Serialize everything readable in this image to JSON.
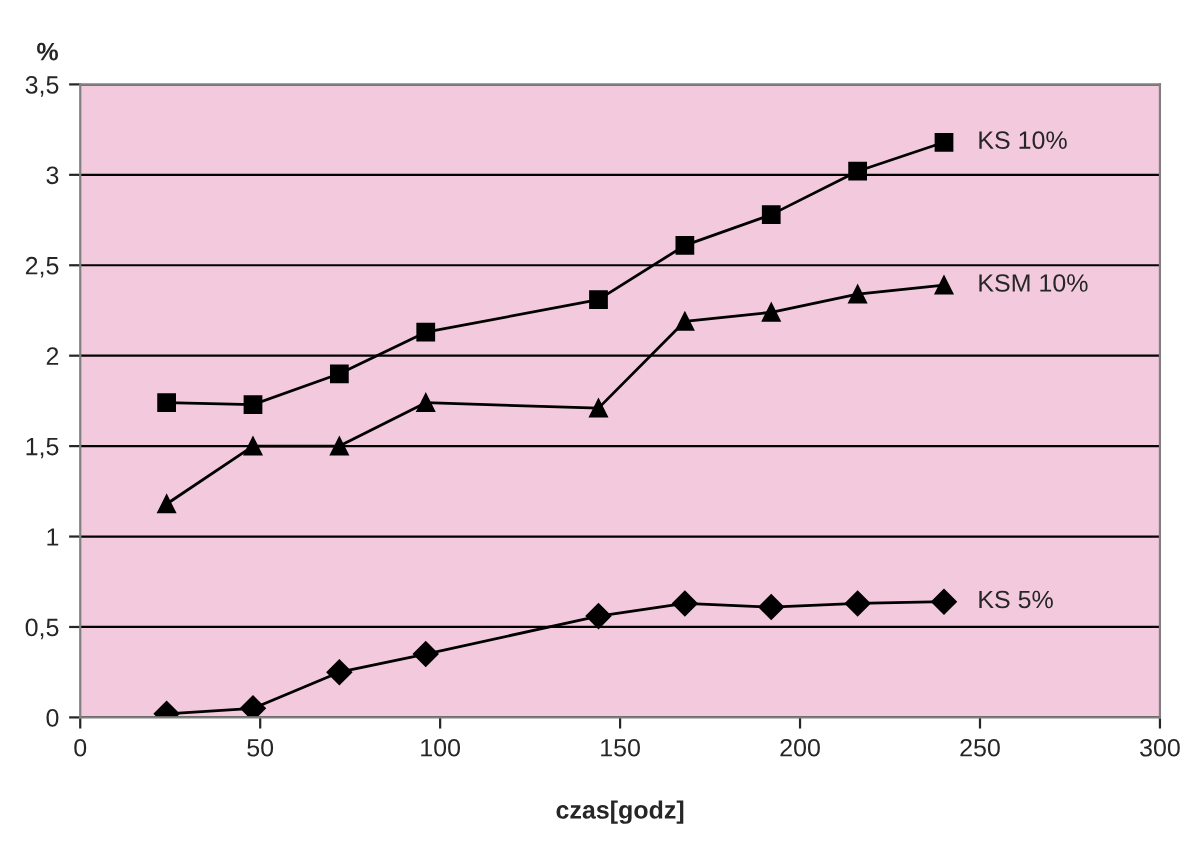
{
  "chart_data": {
    "type": "line",
    "ylabel": "%",
    "xlabel": "czas[godz]",
    "x": [
      24,
      48,
      72,
      96,
      144,
      168,
      192,
      216,
      240
    ],
    "series": [
      {
        "name": "KS 10%",
        "color": "#000000",
        "marker": "square",
        "values": [
          1.74,
          1.73,
          1.9,
          2.13,
          2.31,
          2.61,
          2.78,
          3.02,
          3.18
        ]
      },
      {
        "name": "KSM 10%",
        "color": "#000000",
        "marker": "triangle",
        "values": [
          1.18,
          1.5,
          1.5,
          1.74,
          1.71,
          2.19,
          2.24,
          2.34,
          2.39
        ]
      },
      {
        "name": "KS 5%",
        "color": "#000000",
        "marker": "diamond",
        "values": [
          0.02,
          0.05,
          0.25,
          0.35,
          0.56,
          0.63,
          0.61,
          0.63,
          0.64
        ]
      }
    ],
    "xlim": [
      0,
      300
    ],
    "xticks": [
      0,
      50,
      100,
      150,
      200,
      250,
      300
    ],
    "ylim": [
      0,
      3.5
    ],
    "yticks": [
      0,
      {
        "value": 0.5,
        "label": "0,5"
      },
      1,
      {
        "value": 1.5,
        "label": "1,5"
      },
      2,
      {
        "value": 2.5,
        "label": "2,5"
      },
      3,
      {
        "value": 3.5,
        "label": "3,5"
      }
    ],
    "grid": "y",
    "legend": false,
    "line_style": "solid"
  }
}
